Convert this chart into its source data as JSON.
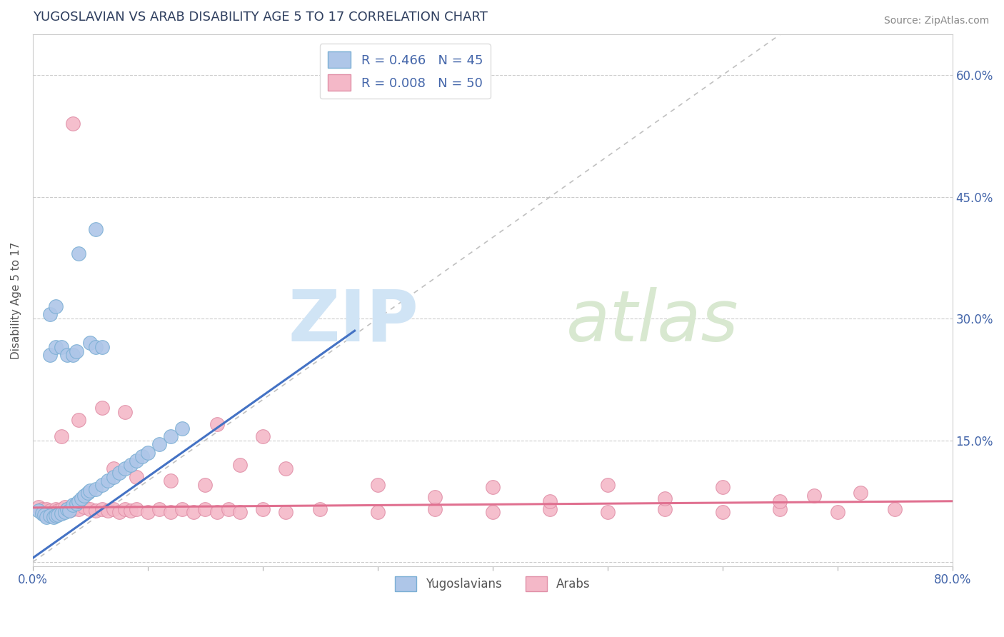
{
  "title": "YUGOSLAVIAN VS ARAB DISABILITY AGE 5 TO 17 CORRELATION CHART",
  "source": "Source: ZipAtlas.com",
  "ylabel": "Disability Age 5 to 17",
  "xlim": [
    0.0,
    0.8
  ],
  "ylim": [
    -0.005,
    0.65
  ],
  "x_ticks": [
    0.0,
    0.1,
    0.2,
    0.3,
    0.4,
    0.5,
    0.6,
    0.7,
    0.8
  ],
  "x_tick_labels": [
    "0.0%",
    "",
    "",
    "",
    "",
    "",
    "",
    "",
    "80.0%"
  ],
  "y_ticks": [
    0.0,
    0.15,
    0.3,
    0.45,
    0.6
  ],
  "y_tick_labels_right": [
    "",
    "15.0%",
    "30.0%",
    "45.0%",
    "60.0%"
  ],
  "diagonal_line": {
    "x": [
      0.0,
      0.8
    ],
    "y": [
      0.0,
      0.8
    ],
    "color": "#c0c0c0",
    "linestyle": "dashed"
  },
  "yug_regression": {
    "x": [
      0.0,
      0.28
    ],
    "y": [
      0.005,
      0.285
    ],
    "color": "#4472c4"
  },
  "arab_regression": {
    "x": [
      0.0,
      0.8
    ],
    "y": [
      0.067,
      0.075
    ],
    "color": "#e07090"
  },
  "yug_points": [
    [
      0.005,
      0.063
    ],
    [
      0.008,
      0.06
    ],
    [
      0.01,
      0.058
    ],
    [
      0.012,
      0.055
    ],
    [
      0.015,
      0.057
    ],
    [
      0.018,
      0.055
    ],
    [
      0.02,
      0.057
    ],
    [
      0.022,
      0.058
    ],
    [
      0.025,
      0.06
    ],
    [
      0.028,
      0.062
    ],
    [
      0.03,
      0.065
    ],
    [
      0.032,
      0.063
    ],
    [
      0.035,
      0.07
    ],
    [
      0.038,
      0.072
    ],
    [
      0.04,
      0.075
    ],
    [
      0.042,
      0.078
    ],
    [
      0.045,
      0.082
    ],
    [
      0.048,
      0.085
    ],
    [
      0.05,
      0.088
    ],
    [
      0.055,
      0.09
    ],
    [
      0.06,
      0.095
    ],
    [
      0.065,
      0.1
    ],
    [
      0.07,
      0.105
    ],
    [
      0.075,
      0.11
    ],
    [
      0.08,
      0.115
    ],
    [
      0.085,
      0.12
    ],
    [
      0.09,
      0.125
    ],
    [
      0.095,
      0.13
    ],
    [
      0.1,
      0.135
    ],
    [
      0.11,
      0.145
    ],
    [
      0.12,
      0.155
    ],
    [
      0.13,
      0.165
    ],
    [
      0.015,
      0.255
    ],
    [
      0.02,
      0.265
    ],
    [
      0.025,
      0.265
    ],
    [
      0.03,
      0.255
    ],
    [
      0.035,
      0.255
    ],
    [
      0.038,
      0.26
    ],
    [
      0.05,
      0.27
    ],
    [
      0.055,
      0.265
    ],
    [
      0.06,
      0.265
    ],
    [
      0.015,
      0.305
    ],
    [
      0.02,
      0.315
    ],
    [
      0.04,
      0.38
    ],
    [
      0.055,
      0.41
    ]
  ],
  "arab_points": [
    [
      0.005,
      0.068
    ],
    [
      0.008,
      0.065
    ],
    [
      0.01,
      0.063
    ],
    [
      0.012,
      0.065
    ],
    [
      0.015,
      0.063
    ],
    [
      0.018,
      0.062
    ],
    [
      0.02,
      0.065
    ],
    [
      0.022,
      0.063
    ],
    [
      0.025,
      0.065
    ],
    [
      0.028,
      0.068
    ],
    [
      0.03,
      0.065
    ],
    [
      0.032,
      0.063
    ],
    [
      0.035,
      0.065
    ],
    [
      0.038,
      0.068
    ],
    [
      0.04,
      0.065
    ],
    [
      0.045,
      0.068
    ],
    [
      0.05,
      0.065
    ],
    [
      0.055,
      0.063
    ],
    [
      0.06,
      0.065
    ],
    [
      0.065,
      0.063
    ],
    [
      0.07,
      0.065
    ],
    [
      0.075,
      0.062
    ],
    [
      0.08,
      0.065
    ],
    [
      0.085,
      0.063
    ],
    [
      0.09,
      0.065
    ],
    [
      0.1,
      0.062
    ],
    [
      0.11,
      0.065
    ],
    [
      0.12,
      0.062
    ],
    [
      0.13,
      0.065
    ],
    [
      0.14,
      0.062
    ],
    [
      0.15,
      0.065
    ],
    [
      0.16,
      0.062
    ],
    [
      0.17,
      0.065
    ],
    [
      0.18,
      0.062
    ],
    [
      0.2,
      0.065
    ],
    [
      0.22,
      0.062
    ],
    [
      0.25,
      0.065
    ],
    [
      0.3,
      0.062
    ],
    [
      0.35,
      0.065
    ],
    [
      0.4,
      0.062
    ],
    [
      0.45,
      0.065
    ],
    [
      0.5,
      0.062
    ],
    [
      0.55,
      0.065
    ],
    [
      0.6,
      0.062
    ],
    [
      0.65,
      0.065
    ],
    [
      0.7,
      0.062
    ],
    [
      0.75,
      0.065
    ],
    [
      0.025,
      0.155
    ],
    [
      0.04,
      0.175
    ],
    [
      0.06,
      0.19
    ],
    [
      0.08,
      0.185
    ],
    [
      0.035,
      0.54
    ],
    [
      0.35,
      0.08
    ],
    [
      0.45,
      0.075
    ],
    [
      0.55,
      0.078
    ],
    [
      0.65,
      0.075
    ],
    [
      0.07,
      0.115
    ],
    [
      0.09,
      0.105
    ],
    [
      0.12,
      0.1
    ],
    [
      0.15,
      0.095
    ],
    [
      0.18,
      0.12
    ],
    [
      0.22,
      0.115
    ],
    [
      0.16,
      0.17
    ],
    [
      0.2,
      0.155
    ],
    [
      0.3,
      0.095
    ],
    [
      0.4,
      0.092
    ],
    [
      0.5,
      0.095
    ],
    [
      0.6,
      0.092
    ],
    [
      0.68,
      0.082
    ],
    [
      0.72,
      0.085
    ]
  ],
  "background_color": "#ffffff",
  "grid_color": "#cccccc",
  "title_color": "#2f3f5f",
  "source_color": "#888888",
  "yug_color": "#aec6e8",
  "arab_color": "#f4b8c8",
  "yug_edge": "#7bafd4",
  "arab_edge": "#e090a8",
  "watermark_zip": "ZIP",
  "watermark_atlas": "atlas",
  "watermark_color": "#d0e4f5"
}
